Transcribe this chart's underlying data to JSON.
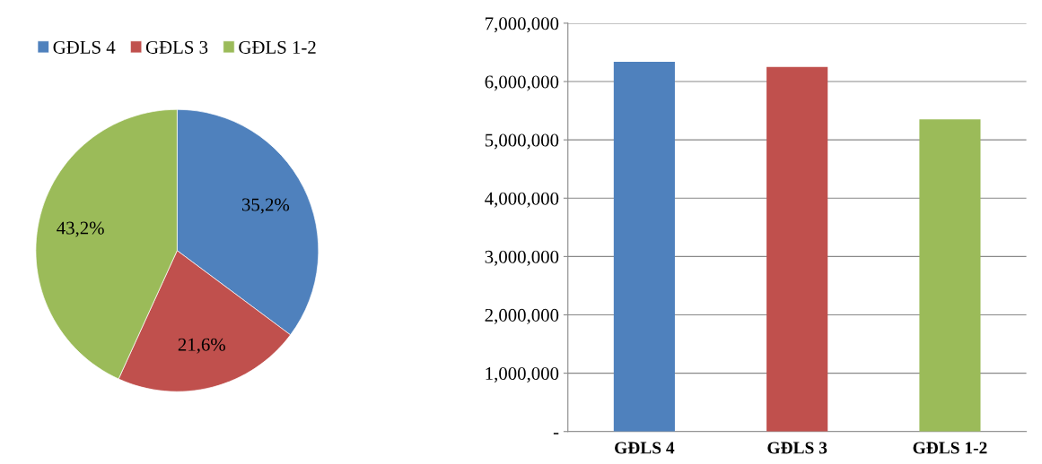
{
  "chart_data": [
    {
      "type": "pie",
      "categories": [
        "GĐLS 4",
        "GĐLS 3",
        "GĐLS 1-2"
      ],
      "values": [
        35.2,
        21.6,
        43.2
      ],
      "colors": [
        "#4f81bd",
        "#c0504d",
        "#9bbb59"
      ],
      "value_labels": [
        "35,2%",
        "21,6%",
        "43,2%"
      ],
      "legend": "top"
    },
    {
      "type": "bar",
      "categories": [
        "GĐLS 4",
        "GĐLS 3",
        "GĐLS 1-2"
      ],
      "values": [
        6340000,
        6250000,
        5350000
      ],
      "colors": [
        "#4f81bd",
        "#c0504d",
        "#9bbb59"
      ],
      "ylim": [
        0,
        7000000
      ],
      "yticks": [
        {
          "value": 0,
          "label": "-"
        },
        {
          "value": 1000000,
          "label": "1,000,000"
        },
        {
          "value": 2000000,
          "label": "2,000,000"
        },
        {
          "value": 3000000,
          "label": "3,000,000"
        },
        {
          "value": 4000000,
          "label": "4,000,000"
        },
        {
          "value": 5000000,
          "label": "5,000,000"
        },
        {
          "value": 6000000,
          "label": "6,000,000"
        },
        {
          "value": 7000000,
          "label": "7,000,000"
        }
      ],
      "grid": "y",
      "legend": false
    }
  ]
}
